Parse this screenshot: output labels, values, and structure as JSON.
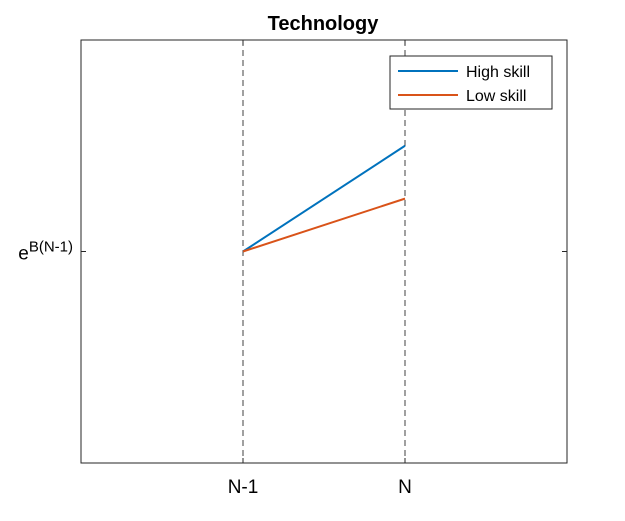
{
  "chart_data": {
    "type": "line",
    "title": "Technology",
    "xlabel": "",
    "ylabel": "",
    "categories": [
      "N-1",
      "N"
    ],
    "x_range": [
      0,
      3
    ],
    "x_positions": [
      1,
      2
    ],
    "y_range": [
      0,
      2
    ],
    "y_ticks": [
      {
        "value": 1,
        "base": "e",
        "exponent": "B(N-1)"
      }
    ],
    "series": [
      {
        "name": "High skill",
        "color": "#0072BD",
        "values": [
          1,
          1.5
        ]
      },
      {
        "name": "Low skill",
        "color": "#D95319",
        "values": [
          1,
          1.25
        ]
      }
    ],
    "vertical_reference_lines": {
      "at": [
        1,
        2
      ],
      "style": "dashed",
      "color": "#404040"
    },
    "grid": false,
    "legend_position": "top-right"
  }
}
